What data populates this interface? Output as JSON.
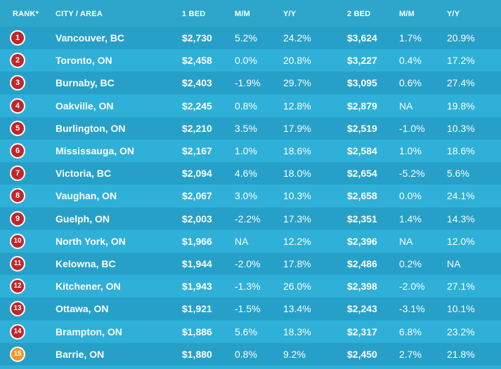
{
  "headers": {
    "rank": "RANK*",
    "city": "CITY / AREA",
    "one_bed": "1 BED",
    "mm1": "M/M",
    "yy1": "Y/Y",
    "two_bed": "2 BED",
    "mm2": "M/M",
    "yy2": "Y/Y"
  },
  "colors": {
    "badge_red": "#c0262d",
    "badge_orange": "#f0962b",
    "row_light": "#2fb0d8",
    "row_dark": "#26a0c8"
  },
  "rows": [
    {
      "rank": "1",
      "city": "Vancouver, BC",
      "one_bed": "$2,730",
      "mm1": "5.2%",
      "yy1": "24.2%",
      "two_bed": "$3,624",
      "mm2": "1.7%",
      "yy2": "20.9%",
      "badge": "red"
    },
    {
      "rank": "2",
      "city": "Toronto, ON",
      "one_bed": "$2,458",
      "mm1": "0.0%",
      "yy1": "20.8%",
      "two_bed": "$3,227",
      "mm2": "0.4%",
      "yy2": "17.2%",
      "badge": "red"
    },
    {
      "rank": "3",
      "city": "Burnaby, BC",
      "one_bed": "$2,403",
      "mm1": "-1.9%",
      "yy1": "29.7%",
      "two_bed": "$3,095",
      "mm2": "0.6%",
      "yy2": "27.4%",
      "badge": "red"
    },
    {
      "rank": "4",
      "city": "Oakville, ON",
      "one_bed": "$2,245",
      "mm1": "0.8%",
      "yy1": "12.8%",
      "two_bed": "$2,879",
      "mm2": "NA",
      "yy2": "19.8%",
      "badge": "red"
    },
    {
      "rank": "5",
      "city": "Burlington, ON",
      "one_bed": "$2,210",
      "mm1": "3.5%",
      "yy1": "17.9%",
      "two_bed": "$2,519",
      "mm2": "-1.0%",
      "yy2": "10.3%",
      "badge": "red"
    },
    {
      "rank": "6",
      "city": "Mississauga, ON",
      "one_bed": "$2,167",
      "mm1": "1.0%",
      "yy1": "18.6%",
      "two_bed": "$2,584",
      "mm2": "1.0%",
      "yy2": "18.6%",
      "badge": "red"
    },
    {
      "rank": "7",
      "city": "Victoria, BC",
      "one_bed": "$2,094",
      "mm1": "4.6%",
      "yy1": "18.0%",
      "two_bed": "$2,654",
      "mm2": "-5.2%",
      "yy2": "5.6%",
      "badge": "red"
    },
    {
      "rank": "8",
      "city": "Vaughan, ON",
      "one_bed": "$2,067",
      "mm1": "3.0%",
      "yy1": "10.3%",
      "two_bed": "$2,658",
      "mm2": "0.0%",
      "yy2": "24.1%",
      "badge": "red"
    },
    {
      "rank": "9",
      "city": "Guelph, ON",
      "one_bed": "$2,003",
      "mm1": "-2.2%",
      "yy1": "17.3%",
      "two_bed": "$2,351",
      "mm2": "1.4%",
      "yy2": "14.3%",
      "badge": "red"
    },
    {
      "rank": "10",
      "city": "North York, ON",
      "one_bed": "$1,966",
      "mm1": "NA",
      "yy1": "12.2%",
      "two_bed": "$2,396",
      "mm2": "NA",
      "yy2": "12.0%",
      "badge": "red"
    },
    {
      "rank": "11",
      "city": "Kelowna, BC",
      "one_bed": "$1,944",
      "mm1": "-2.0%",
      "yy1": "17.8%",
      "two_bed": "$2,486",
      "mm2": "0.2%",
      "yy2": "NA",
      "badge": "red"
    },
    {
      "rank": "12",
      "city": "Kitchener, ON",
      "one_bed": "$1,943",
      "mm1": "-1.3%",
      "yy1": "26.0%",
      "two_bed": "$2,398",
      "mm2": "-2.0%",
      "yy2": "27.1%",
      "badge": "red"
    },
    {
      "rank": "13",
      "city": "Ottawa, ON",
      "one_bed": "$1,921",
      "mm1": "-1.5%",
      "yy1": "13.4%",
      "two_bed": "$2,243",
      "mm2": "-3.1%",
      "yy2": "10.1%",
      "badge": "red"
    },
    {
      "rank": "14",
      "city": "Brampton, ON",
      "one_bed": "$1,886",
      "mm1": "5.6%",
      "yy1": "18.3%",
      "two_bed": "$2,317",
      "mm2": "6.8%",
      "yy2": "23.2%",
      "badge": "red"
    },
    {
      "rank": "15",
      "city": "Barrie, ON",
      "one_bed": "$1,880",
      "mm1": "0.8%",
      "yy1": "9.2%",
      "two_bed": "$2,450",
      "mm2": "2.7%",
      "yy2": "21.8%",
      "badge": "orange"
    }
  ]
}
